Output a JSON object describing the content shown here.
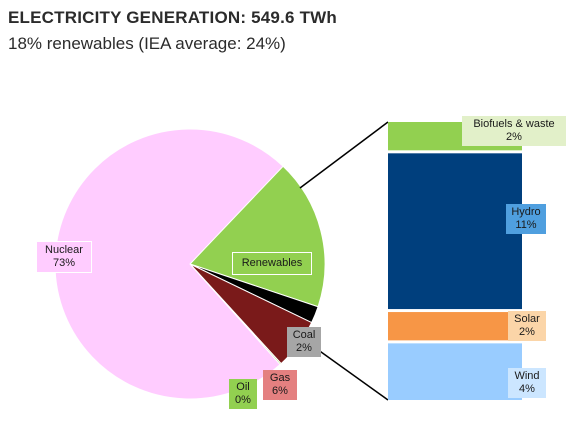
{
  "title": "ELECTRICITY GENERATION:  549.6 TWh",
  "subtitle": "18% renewables (IEA average: 24%)",
  "chart_data": [
    {
      "type": "pie",
      "categories": [
        "Nuclear",
        "Renewables",
        "Coal",
        "Gas",
        "Oil"
      ],
      "values": [
        73,
        18,
        2,
        6,
        0
      ],
      "value_labels": [
        "73%",
        "",
        "2%",
        "6%",
        "0%"
      ],
      "colors": [
        "#ffccff",
        "#92d050",
        "#000000",
        "#7a1a1a",
        "#92d050"
      ]
    },
    {
      "type": "bar",
      "stacked": true,
      "categories": [
        "Biofuels & waste",
        "Hydro",
        "Solar",
        "Wind"
      ],
      "values": [
        2,
        11,
        2,
        4
      ],
      "value_labels": [
        "2%",
        "11%",
        "2%",
        "4%"
      ],
      "colors": [
        "#92d050",
        "#003f7d",
        "#f79646",
        "#99ccff"
      ]
    }
  ]
}
